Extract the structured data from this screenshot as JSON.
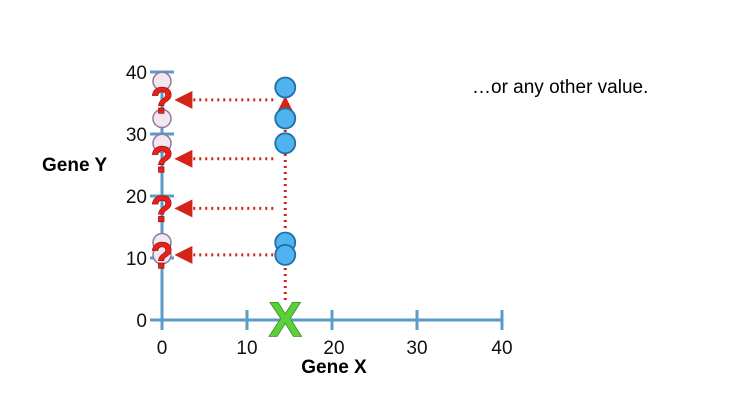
{
  "axes": {
    "x_title": "Gene X",
    "y_title": "Gene Y",
    "x_ticks": [
      "0",
      "10",
      "20",
      "30",
      "40"
    ],
    "y_ticks": [
      "0",
      "10",
      "20",
      "30",
      "40"
    ]
  },
  "annotation_text": "…or any other value.",
  "question_mark_glyph": "?",
  "x_marker_glyph": "X",
  "colors": {
    "axis": "#5b9bc8",
    "point_fill": "#4fb3f0",
    "point_stroke": "#1f6fa8",
    "arrow": "#d42418",
    "question_mark": "#e8201a",
    "x_marker": "#5ccf3a",
    "ghost_fill": "#f2e6f0",
    "ghost_stroke": "#8d7a9c"
  },
  "chart_data": {
    "type": "scatter",
    "xlabel": "Gene X",
    "ylabel": "Gene Y",
    "xlim": [
      0,
      40
    ],
    "ylim": [
      0,
      40
    ],
    "grid": false,
    "points": [
      {
        "x": 14.5,
        "y": 37.5
      },
      {
        "x": 14.5,
        "y": 32.5
      },
      {
        "x": 14.5,
        "y": 28.5
      },
      {
        "x": 14.5,
        "y": 12.5
      },
      {
        "x": 14.5,
        "y": 10.5
      }
    ],
    "query_marker": {
      "x": 14.5,
      "y": 0
    },
    "ghost_points": [
      {
        "x": 0,
        "y": 38.5
      },
      {
        "x": 0,
        "y": 32.5
      },
      {
        "x": 0,
        "y": 28.5
      },
      {
        "x": 0,
        "y": 12.5
      },
      {
        "x": 0,
        "y": 10.5
      }
    ],
    "question_marks": [
      {
        "x": 0,
        "y": 35.5
      },
      {
        "x": 0,
        "y": 26
      },
      {
        "x": 0,
        "y": 18
      },
      {
        "x": 0,
        "y": 10.5
      }
    ],
    "arrows_to_y_axis": [
      {
        "y": 35.5
      },
      {
        "y": 26
      },
      {
        "y": 18
      },
      {
        "y": 10.5
      }
    ]
  }
}
